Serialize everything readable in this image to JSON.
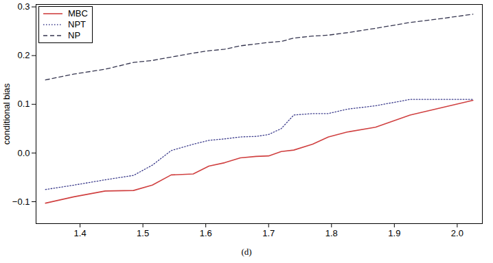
{
  "chart_data": {
    "type": "line",
    "caption": "(d)",
    "y_label": "conditional bias",
    "x": [
      1.345,
      1.39,
      1.44,
      1.485,
      1.515,
      1.545,
      1.58,
      1.605,
      1.63,
      1.655,
      1.68,
      1.7,
      1.72,
      1.74,
      1.77,
      1.795,
      1.825,
      1.87,
      1.925,
      1.975,
      2.025
    ],
    "series": [
      {
        "name": "MBC",
        "color": "#d04040",
        "line_style": "solid",
        "values": [
          -0.103,
          -0.09,
          -0.078,
          -0.077,
          -0.066,
          -0.045,
          -0.043,
          -0.027,
          -0.02,
          -0.01,
          -0.007,
          -0.006,
          0.003,
          0.006,
          0.018,
          0.033,
          0.043,
          0.053,
          0.078,
          0.093,
          0.108
        ]
      },
      {
        "name": "NPT",
        "color": "#3c3c8c",
        "line_style": "dotted",
        "values": [
          -0.075,
          -0.066,
          -0.055,
          -0.046,
          -0.025,
          0.005,
          0.018,
          0.026,
          0.029,
          0.033,
          0.034,
          0.038,
          0.05,
          0.078,
          0.081,
          0.081,
          0.09,
          0.097,
          0.11,
          0.11,
          0.11
        ]
      },
      {
        "name": "NP",
        "color": "#34344e",
        "line_style": "dashed",
        "values": [
          0.15,
          0.162,
          0.172,
          0.186,
          0.19,
          0.197,
          0.205,
          0.21,
          0.213,
          0.22,
          0.224,
          0.227,
          0.229,
          0.236,
          0.24,
          0.242,
          0.247,
          0.256,
          0.268,
          0.276,
          0.285
        ]
      }
    ],
    "xlim": [
      1.33,
      2.04
    ],
    "xticks": [
      1.4,
      1.5,
      1.6,
      1.7,
      1.8,
      1.9,
      {
        "value": 2,
        "label": "2.0"
      }
    ],
    "ylim": [
      -0.145,
      0.305
    ],
    "yticks": [
      {
        "value": -0.1,
        "label": "−0.1"
      },
      {
        "value": 0,
        "label": "0.0"
      },
      0.1,
      0.2,
      0.3
    ],
    "grid": false,
    "legend": "top-left"
  }
}
